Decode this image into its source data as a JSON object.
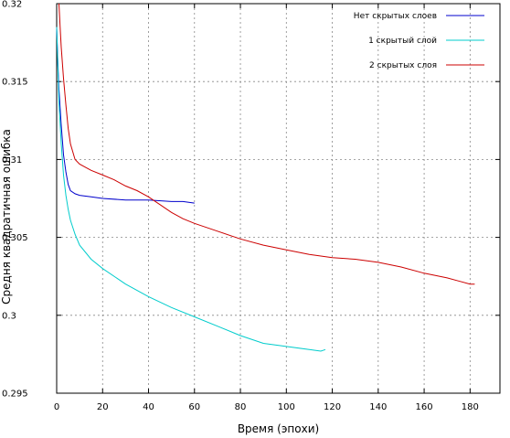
{
  "chart_data": {
    "type": "line",
    "xlabel": "Время (эпохи)",
    "ylabel": "Средня квадратичная ошибка",
    "xlim": [
      0,
      193
    ],
    "ylim": [
      0.295,
      0.32
    ],
    "x_ticks": [
      0,
      20,
      40,
      60,
      80,
      100,
      120,
      140,
      160,
      180
    ],
    "y_ticks": [
      0.295,
      0.3,
      0.305,
      0.31,
      0.315,
      0.32
    ],
    "x_tick_labels": [
      "0",
      "20",
      "40",
      "60",
      "80",
      "100",
      "120",
      "140",
      "160",
      "180"
    ],
    "y_tick_labels": [
      "0.295",
      "0.3",
      "0.305",
      "0.31",
      "0.315",
      "0.32"
    ],
    "grid": true,
    "legend_position": "top-right",
    "series": [
      {
        "name": "Нет скрытых слоев",
        "color": "#0000cc",
        "x": [
          0,
          0.5,
          1,
          2,
          3,
          4,
          5,
          6,
          8,
          10,
          15,
          20,
          30,
          40,
          50,
          55,
          60
        ],
        "y": [
          0.3185,
          0.3162,
          0.3145,
          0.3122,
          0.3103,
          0.3092,
          0.3084,
          0.308,
          0.3078,
          0.3077,
          0.3076,
          0.3075,
          0.3074,
          0.3074,
          0.3073,
          0.3073,
          0.3072
        ]
      },
      {
        "name": "1 скрытый слой",
        "color": "#00cccc",
        "x": [
          0,
          0.5,
          1,
          2,
          3,
          4,
          5,
          6,
          8,
          10,
          15,
          20,
          30,
          40,
          50,
          60,
          70,
          80,
          90,
          100,
          110,
          115,
          117
        ],
        "y": [
          0.3185,
          0.316,
          0.3137,
          0.311,
          0.309,
          0.3077,
          0.3068,
          0.3061,
          0.3052,
          0.3045,
          0.3036,
          0.303,
          0.302,
          0.3012,
          0.3005,
          0.2999,
          0.2993,
          0.2987,
          0.2982,
          0.298,
          0.2978,
          0.2977,
          0.2978
        ]
      },
      {
        "name": "2 скрытых слоя",
        "color": "#cc0000",
        "x": [
          1,
          1.5,
          2,
          3,
          4,
          5,
          6,
          8,
          10,
          15,
          20,
          25,
          30,
          35,
          40,
          45,
          50,
          55,
          60,
          70,
          80,
          90,
          100,
          110,
          120,
          130,
          140,
          150,
          160,
          170,
          175,
          180,
          182
        ],
        "y": [
          0.32,
          0.3185,
          0.3172,
          0.3152,
          0.3135,
          0.312,
          0.311,
          0.31,
          0.3097,
          0.3093,
          0.309,
          0.3087,
          0.3083,
          0.308,
          0.3076,
          0.3071,
          0.3066,
          0.3062,
          0.3059,
          0.3054,
          0.3049,
          0.3045,
          0.3042,
          0.3039,
          0.3037,
          0.3036,
          0.3034,
          0.3031,
          0.3027,
          0.3024,
          0.3022,
          0.302,
          0.302
        ]
      }
    ]
  }
}
